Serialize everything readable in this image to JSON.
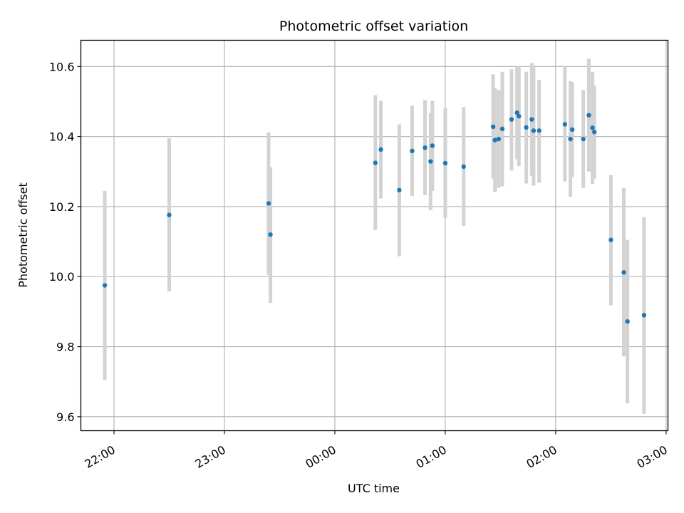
{
  "chart_data": {
    "type": "scatter",
    "title": "Photometric offset variation",
    "xlabel": "UTC time",
    "ylabel": "Photometric offset",
    "x_unit": "UTC time (HH:MM, continuous across midnight; values after 24:00 are the following day)",
    "xlim": [
      "21:42",
      "27:01"
    ],
    "ylim": [
      9.56,
      10.675
    ],
    "grid": true,
    "x_ticks": [
      {
        "t": "22:00",
        "label": "22:00"
      },
      {
        "t": "23:00",
        "label": "23:00"
      },
      {
        "t": "24:00",
        "label": "00:00"
      },
      {
        "t": "25:00",
        "label": "01:00"
      },
      {
        "t": "26:00",
        "label": "02:00"
      },
      {
        "t": "27:00",
        "label": "03:00"
      }
    ],
    "y_ticks": [
      9.6,
      9.8,
      10.0,
      10.2,
      10.4,
      10.6
    ],
    "y_tick_labels": [
      "9.6",
      "9.8",
      "10.0",
      "10.2",
      "10.4",
      "10.6"
    ],
    "colors": {
      "marker": "#1f77b4",
      "errorbar": "#d3d3d3",
      "grid": "#b0b0b0"
    },
    "points": [
      {
        "t": "21:55",
        "y": 9.975,
        "lo": 9.705,
        "hi": 10.245
      },
      {
        "t": "22:30",
        "y": 10.176,
        "lo": 9.958,
        "hi": 10.395
      },
      {
        "t": "23:24",
        "y": 10.209,
        "lo": 10.005,
        "hi": 10.412
      },
      {
        "t": "23:25",
        "y": 10.12,
        "lo": 9.925,
        "hi": 10.312
      },
      {
        "t": "24:22",
        "y": 10.325,
        "lo": 10.133,
        "hi": 10.518
      },
      {
        "t": "24:25",
        "y": 10.363,
        "lo": 10.223,
        "hi": 10.502
      },
      {
        "t": "24:35",
        "y": 10.247,
        "lo": 10.058,
        "hi": 10.435
      },
      {
        "t": "24:42",
        "y": 10.359,
        "lo": 10.23,
        "hi": 10.488
      },
      {
        "t": "24:49",
        "y": 10.368,
        "lo": 10.233,
        "hi": 10.504
      },
      {
        "t": "24:52",
        "y": 10.329,
        "lo": 10.19,
        "hi": 10.467
      },
      {
        "t": "24:53",
        "y": 10.374,
        "lo": 10.245,
        "hi": 10.502
      },
      {
        "t": "25:00",
        "y": 10.324,
        "lo": 10.167,
        "hi": 10.481
      },
      {
        "t": "25:10",
        "y": 10.314,
        "lo": 10.145,
        "hi": 10.484
      },
      {
        "t": "25:26",
        "y": 10.428,
        "lo": 10.28,
        "hi": 10.578
      },
      {
        "t": "25:27",
        "y": 10.39,
        "lo": 10.242,
        "hi": 10.538
      },
      {
        "t": "25:29",
        "y": 10.393,
        "lo": 10.253,
        "hi": 10.533
      },
      {
        "t": "25:31",
        "y": 10.422,
        "lo": 10.258,
        "hi": 10.585
      },
      {
        "t": "25:36",
        "y": 10.449,
        "lo": 10.303,
        "hi": 10.592
      },
      {
        "t": "25:39",
        "y": 10.468,
        "lo": 10.335,
        "hi": 10.6
      },
      {
        "t": "25:40",
        "y": 10.458,
        "lo": 10.316,
        "hi": 10.6
      },
      {
        "t": "25:44",
        "y": 10.426,
        "lo": 10.266,
        "hi": 10.585
      },
      {
        "t": "25:47",
        "y": 10.449,
        "lo": 10.288,
        "hi": 10.61
      },
      {
        "t": "25:48",
        "y": 10.417,
        "lo": 10.26,
        "hi": 10.6
      },
      {
        "t": "25:51",
        "y": 10.417,
        "lo": 10.268,
        "hi": 10.562
      },
      {
        "t": "26:05",
        "y": 10.435,
        "lo": 10.272,
        "hi": 10.6
      },
      {
        "t": "26:08",
        "y": 10.393,
        "lo": 10.228,
        "hi": 10.558
      },
      {
        "t": "26:09",
        "y": 10.42,
        "lo": 10.285,
        "hi": 10.555
      },
      {
        "t": "26:15",
        "y": 10.393,
        "lo": 10.253,
        "hi": 10.533
      },
      {
        "t": "26:18",
        "y": 10.461,
        "lo": 10.3,
        "hi": 10.622
      },
      {
        "t": "26:20",
        "y": 10.425,
        "lo": 10.265,
        "hi": 10.585
      },
      {
        "t": "26:21",
        "y": 10.413,
        "lo": 10.28,
        "hi": 10.545
      },
      {
        "t": "26:30",
        "y": 10.105,
        "lo": 9.918,
        "hi": 10.29
      },
      {
        "t": "26:37",
        "y": 10.012,
        "lo": 9.772,
        "hi": 10.253
      },
      {
        "t": "26:39",
        "y": 9.872,
        "lo": 9.638,
        "hi": 10.105
      },
      {
        "t": "26:48",
        "y": 9.89,
        "lo": 9.608,
        "hi": 10.17
      }
    ]
  }
}
